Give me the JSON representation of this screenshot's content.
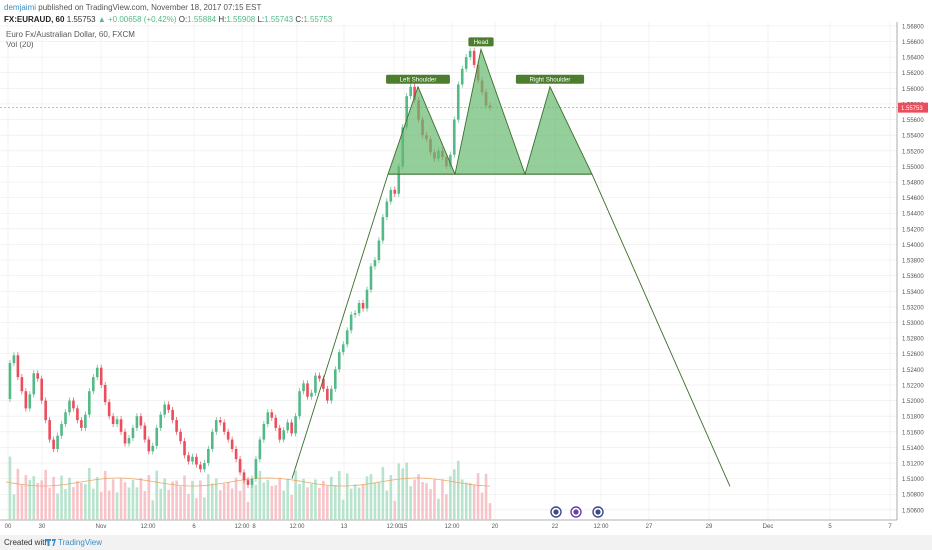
{
  "header": {
    "author": "demjaimi",
    "published": "published on TradingView.com, November 18, 2017 07:15 EST"
  },
  "ohlc": {
    "symbol": "FX:EURAUD, 60",
    "last": "1.55753",
    "change": "▲ +0.00658 (+0.42%)",
    "o_label": "O:",
    "o": "1.55884",
    "h_label": "H:",
    "h": "1.55908",
    "l_label": "L:",
    "l": "1.55743",
    "c_label": "C:",
    "c": "1.55753"
  },
  "symbol_title": "Euro Fx/Australian Dollar, 60, FXCM",
  "volume_title": "Vol (20)",
  "footer": {
    "created": "Created with",
    "brand": "TradingView"
  },
  "colors": {
    "up": "#53b987",
    "down": "#eb4d5c",
    "pattern_fill": "#67b96f",
    "pattern_stroke": "#3a6e2a",
    "price_line": "#eb4d5c",
    "grid": "#ebebeb"
  },
  "chart_data": {
    "type": "candlestick",
    "symbol": "FX:EURAUD",
    "interval": "60",
    "ylim": [
      1.5047,
      1.5685
    ],
    "y_ticks": [
      "1.56800",
      "1.56600",
      "1.56400",
      "1.56200",
      "1.56000",
      "1.55800",
      "1.55600",
      "1.55400",
      "1.55200",
      "1.55000",
      "1.54800",
      "1.54600",
      "1.54400",
      "1.54200",
      "1.54000",
      "1.53800",
      "1.53600",
      "1.53400",
      "1.53200",
      "1.53000",
      "1.52800",
      "1.52600",
      "1.52400",
      "1.52200",
      "1.52000",
      "1.51800",
      "1.51600",
      "1.51400",
      "1.51200",
      "1.51000",
      "1.50800",
      "1.50600"
    ],
    "y_tick_values": [
      1.568,
      1.566,
      1.564,
      1.562,
      1.56,
      1.558,
      1.556,
      1.554,
      1.552,
      1.55,
      1.548,
      1.546,
      1.544,
      1.542,
      1.54,
      1.538,
      1.536,
      1.534,
      1.532,
      1.53,
      1.528,
      1.526,
      1.524,
      1.522,
      1.52,
      1.518,
      1.516,
      1.514,
      1.512,
      1.51,
      1.508,
      1.506
    ],
    "x_ticks": [
      "00",
      "30",
      "Nov",
      "12:00",
      "6",
      "12:00",
      "8",
      "12:00",
      "13",
      "12:00",
      "15",
      "12:00",
      "20",
      "22",
      "12:00",
      "27",
      "29",
      "Dec",
      "5",
      "7"
    ],
    "x_tick_positions": [
      8,
      42,
      101,
      148,
      194,
      242,
      254,
      297,
      344,
      394,
      404,
      452,
      495,
      555,
      601,
      649,
      709,
      768,
      830,
      890
    ],
    "current_price": "1.55753",
    "current_price_value": 1.55753,
    "price_path": [
      [
        1.5202,
        1.5248,
        1.5258,
        1.523,
        1.5212,
        1.519,
        1.5208,
        1.5235,
        1.5228,
        1.52,
        1.5175,
        1.515,
        1.5138,
        1.5155,
        1.517,
        1.5185,
        1.52,
        1.519,
        1.5175,
        1.5165,
        1.5182,
        1.5212,
        1.523,
        1.5242,
        1.522,
        1.5198,
        1.518,
        1.517,
        1.5176,
        1.516,
        1.5145,
        1.5152,
        1.5165,
        1.518,
        1.5168,
        1.515,
        1.5135,
        1.5142,
        1.5165,
        1.5182,
        1.5195,
        1.5188,
        1.5175,
        1.516,
        1.5148,
        1.513,
        1.5122,
        1.5128,
        1.5118,
        1.5112,
        1.512,
        1.5138,
        1.516,
        1.5175,
        1.5172,
        1.516,
        1.515,
        1.5138,
        1.5125,
        1.5108,
        1.5098,
        1.5092,
        1.51,
        1.5125,
        1.515,
        1.517,
        1.5185,
        1.5178,
        1.5165,
        1.515,
        1.5162,
        1.5172,
        1.5158,
        1.518,
        1.5212,
        1.5222,
        1.5205,
        1.521,
        1.5232,
        1.5228,
        1.5215,
        1.52,
        1.5215,
        1.524,
        1.5262,
        1.5272,
        1.529,
        1.531,
        1.5312,
        1.5325,
        1.5318,
        1.5342,
        1.5372,
        1.538,
        1.5405,
        1.5435,
        1.5455,
        1.547,
        1.5465,
        1.55,
        1.555,
        1.559,
        1.5602,
        1.5585,
        1.556,
        1.554,
        1.5535,
        1.5518,
        1.551,
        1.552,
        1.5512,
        1.55,
        1.5515,
        1.556,
        1.5605,
        1.5625,
        1.564,
        1.5648,
        1.563,
        1.561,
        1.5595,
        1.5578,
        1.55753
      ]
    ],
    "patterns": [
      {
        "label": "Left Shoulder",
        "points": [
          [
            1.549
          ],
          [
            1.5602
          ],
          [
            1.549
          ]
        ]
      },
      {
        "label": "Head",
        "points": [
          [
            1.549
          ],
          [
            1.565
          ],
          [
            1.549
          ]
        ]
      },
      {
        "label": "Right Shoulder",
        "points": [
          [
            1.549
          ],
          [
            1.5602
          ],
          [
            1.549
          ]
        ]
      }
    ],
    "projection_line": [
      [
        1.51
      ],
      [
        1.549
      ],
      [
        1.509
      ]
    ],
    "volume_series_name": "Vol (20)"
  }
}
